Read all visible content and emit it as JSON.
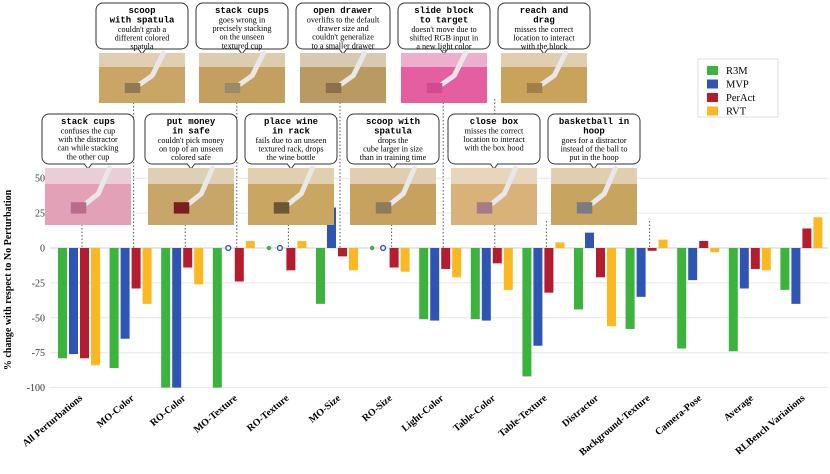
{
  "chart_data": {
    "type": "bar",
    "title": "",
    "xlabel": "",
    "ylabel": "% change with respect to No Perturbation",
    "ylim": [
      -100,
      65
    ],
    "yticks": [
      -100,
      -75,
      -50,
      -25,
      0,
      25,
      50
    ],
    "grid": true,
    "legend_position": "right",
    "categories": [
      "All Perturbations",
      "MO-Color",
      "RO-Color",
      "MO-Texture",
      "RO-Texture",
      "MO-Size",
      "RO-Size",
      "Light-Color",
      "Table-Color",
      "Table-Texture",
      "Distractor",
      "Background-Texture",
      "Camera-Pose",
      "Average",
      "RLBench Variations"
    ],
    "series": [
      {
        "name": "R3M",
        "color": "#3cb33c",
        "values": [
          -79,
          -86,
          -100,
          -100,
          null,
          -40,
          null,
          -51,
          -51,
          -92,
          -44,
          -58,
          -72,
          -74,
          -30
        ]
      },
      {
        "name": "MVP",
        "color": "#2f55b4",
        "values": [
          -76,
          -65,
          -100,
          null,
          null,
          29,
          null,
          -52,
          -52,
          -70,
          11,
          -35,
          -23,
          -29,
          -40
        ]
      },
      {
        "name": "PerAct",
        "color": "#b31d2f",
        "values": [
          -79,
          -29,
          -14,
          -24,
          -16,
          -6,
          -14,
          -15,
          -11,
          -32,
          -21,
          -2,
          5,
          -15,
          14
        ]
      },
      {
        "name": "RVT",
        "color": "#fbb821",
        "values": [
          -84,
          -40,
          -26,
          5,
          5,
          -16,
          -17,
          -21,
          -30,
          4,
          -56,
          6,
          -3,
          -16,
          22
        ]
      }
    ],
    "annotations": [
      {
        "title": [
          "scoop",
          "with spatula"
        ],
        "text": [
          "couldn't grab a",
          "different colored",
          "spatula"
        ],
        "category": "MO-Color"
      },
      {
        "title": [
          "stack cups"
        ],
        "text": [
          "goes wrong in",
          "precisely stacking",
          "on the unseen",
          "textured cup"
        ],
        "category": "MO-Texture"
      },
      {
        "title": [
          "open drawer"
        ],
        "text": [
          "overlifts to the default",
          "drawer size and",
          "couldn't generalize",
          "to a smaller drawer"
        ],
        "category": "MO-Size"
      },
      {
        "title": [
          "slide block",
          "to target"
        ],
        "text": [
          "doesn't move due to",
          "shifted RGB input in",
          "a new light color"
        ],
        "category": "Light-Color"
      },
      {
        "title": [
          "reach and",
          "drag"
        ],
        "text": [
          "misses the correct",
          "location to interact",
          "with the block"
        ],
        "category": "Table-Color"
      },
      {
        "title": [
          "stack cups"
        ],
        "text": [
          "confuses the cup",
          "with the distractor",
          "can while stacking",
          "the other cup"
        ],
        "category": "All Perturbations"
      },
      {
        "title": [
          "put money",
          "in safe"
        ],
        "text": [
          "couldn't pick money",
          "on top of an unseen",
          "colored safe"
        ],
        "category": "RO-Color"
      },
      {
        "title": [
          "place wine",
          "in rack"
        ],
        "text": [
          "fails due to an unseen",
          "textured rack, drops",
          "the wine bottle"
        ],
        "category": "RO-Texture"
      },
      {
        "title": [
          "scoop with",
          "spatula"
        ],
        "text": [
          "drops the",
          "cube larger in size",
          "than in training time"
        ],
        "category": "RO-Size"
      },
      {
        "title": [
          "close box"
        ],
        "text": [
          "misses the correct",
          "location to interact",
          "with the box hood"
        ],
        "category": "Table-Texture"
      },
      {
        "title": [
          "basketball in",
          "hoop"
        ],
        "text": [
          "goes for a distractor",
          "instead of the ball to",
          "put in the hoop"
        ],
        "category": "Background-Texture"
      }
    ]
  }
}
